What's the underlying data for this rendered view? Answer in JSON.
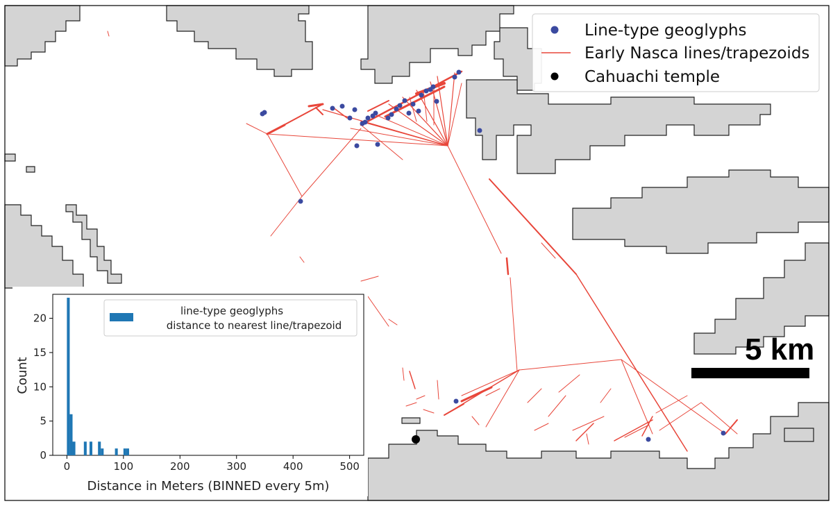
{
  "map": {
    "colors": {
      "land": "#d4d4d4",
      "land_edge": "#222222",
      "lines": "#e8463a",
      "geoglyph": "#3b4aa0",
      "temple": "#000000"
    },
    "legend": {
      "items": [
        {
          "label": "Line-type geoglyphs",
          "marker": "dot",
          "color": "#3b4aa0"
        },
        {
          "label": "Early Nasca lines/trapezoids",
          "marker": "line",
          "color": "#e8463a"
        },
        {
          "label": "Cahuachi temple",
          "marker": "dot",
          "color": "#000000"
        }
      ]
    },
    "scale_bar": {
      "label": "5 km"
    }
  },
  "chart_data": {
    "type": "bar",
    "title": "",
    "xlabel": "Distance in Meters (BINNED every 5m)",
    "ylabel": "Count",
    "xlim": [
      -25,
      525
    ],
    "ylim": [
      0,
      23.5
    ],
    "xticks": [
      0,
      100,
      200,
      300,
      400,
      500
    ],
    "yticks": [
      0,
      5,
      10,
      15,
      20
    ],
    "bin_width": 5,
    "color": "#1f77b4",
    "legend": {
      "line1": "line-type geoglyphs",
      "line2": "distance to nearest line/trapezoid"
    },
    "bins": [
      {
        "x": 0,
        "count": 23
      },
      {
        "x": 5,
        "count": 6
      },
      {
        "x": 10,
        "count": 2
      },
      {
        "x": 30,
        "count": 2
      },
      {
        "x": 40,
        "count": 2
      },
      {
        "x": 55,
        "count": 2
      },
      {
        "x": 60,
        "count": 1
      },
      {
        "x": 85,
        "count": 1
      },
      {
        "x": 100,
        "count": 1
      },
      {
        "x": 105,
        "count": 1
      }
    ]
  }
}
